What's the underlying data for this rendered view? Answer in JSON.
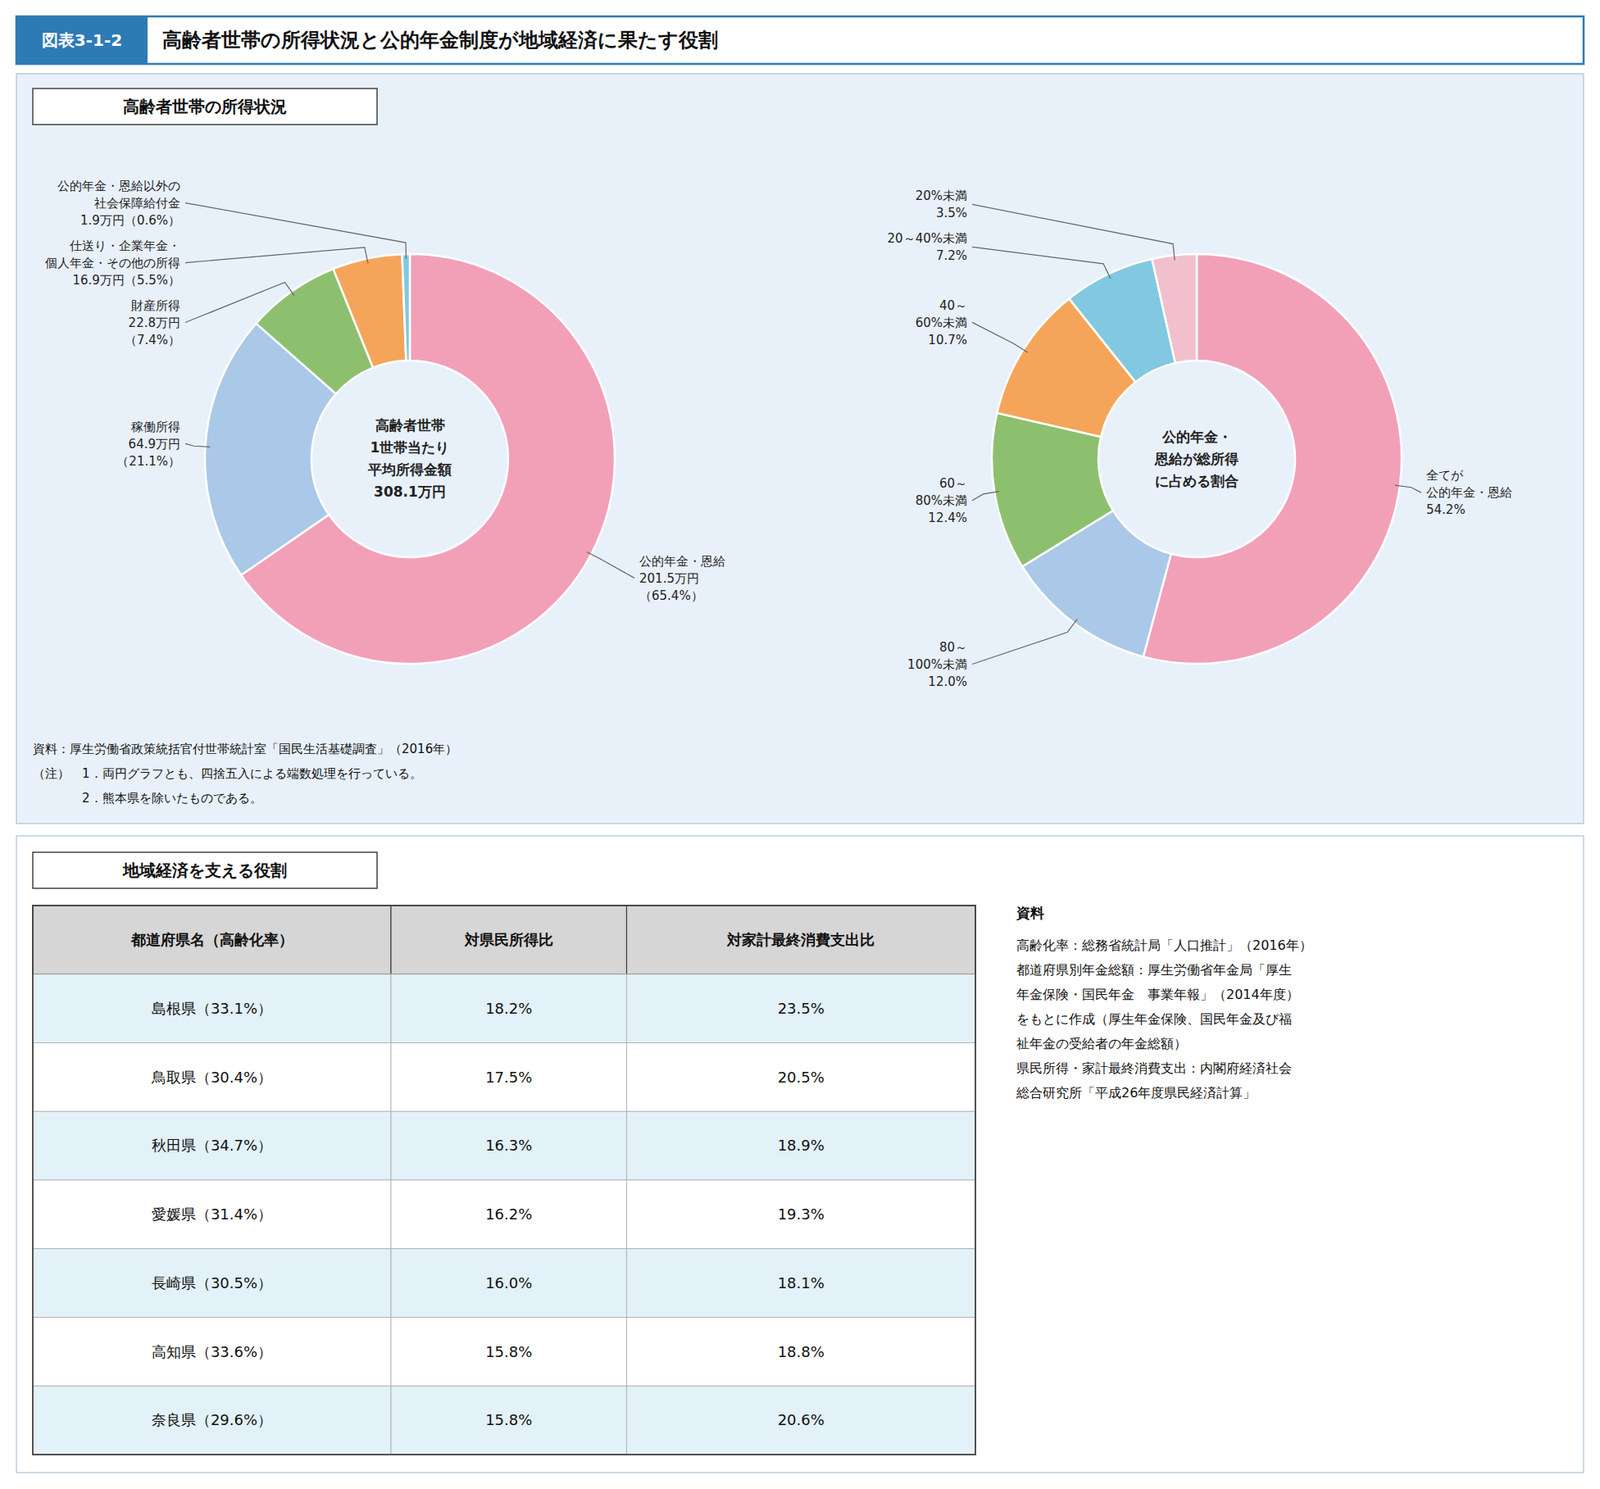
{
  "title": "高齢者世帯の所得状況と公的年金制度が地域経済に果たす役割",
  "subtitle": "図表3-1-2",
  "annotations": [
    "資料：厚生労働省政策統括官付世帯統計室「国民生活基礎調査」（2016年）",
    "（注）　1．両円グラフとも、四捨五入による端数処理を行っている。",
    "　　　　2．熊本県を除いたものである。"
  ],
  "chart_data": [
    {
      "type": "pie",
      "title": "高齢者世帯の所得状況",
      "categories": [
        "公的年金・恩給\n201.5万円\n（65.4%）",
        "稼働所得\n64.9万円\n（21.1%）",
        "財産所得\n22.8万円\n（7.4%）",
        "仕送り・企業年金・\n個人年金・その他の所得\n16.9万円（5.5%）",
        "公的年金・恩給以外の\n社会保障給付金\n1.9万円（0.6%）"
      ],
      "values": [
        65.4,
        21.1,
        7.4,
        5.5,
        0.6
      ],
      "colors": [
        "#f2a0b8",
        "#aac8e8",
        "#8dc06e",
        "#f5a55a",
        "#82c8e0"
      ],
      "annotations": [
        "高齢者世帯\n1世帯当たり\n平均所得金額\n308.1万円"
      ]
    },
    {
      "type": "pie",
      "categories": [
        "全てが\n公的年金・恩給\n54.2%",
        "80～\n100%未満\n12.0%",
        "60～\n80%未満\n12.4%",
        "40～\n60%未満\n10.7%",
        "20～40%未満\n7.2%",
        "20%未満\n3.5%"
      ],
      "values": [
        54.2,
        12.0,
        12.4,
        10.7,
        7.2,
        3.5
      ],
      "colors": [
        "#f2a0b8",
        "#aac8e8",
        "#8dc06e",
        "#f5a55a",
        "#82c8e0",
        "#f2c0cc"
      ],
      "annotations": [
        "公的年金・\n恩給が総所得\nに占める割合"
      ]
    },
    {
      "type": "table",
      "title": "地域経済を支える役割",
      "xlabel": "都道府県名（高齢化率）",
      "categories": [
        "島根県（33.1%）",
        "鳥取県（30.4%）",
        "秋田県（34.7%）",
        "愛媛県（31.4%）",
        "長崎県（30.5%）",
        "高知県（33.6%）",
        "奈良県（29.6%）"
      ],
      "series": [
        {
          "name": "対県民所得比",
          "values": [
            18.2,
            17.5,
            16.3,
            16.2,
            16.0,
            15.8,
            15.8
          ],
          "value_labels": [
            "18.2%",
            "17.5%",
            "16.3%",
            "16.2%",
            "16.0%",
            "15.8%",
            "15.8%"
          ]
        },
        {
          "name": "対家計最終消費支出比",
          "values": [
            23.5,
            20.5,
            18.9,
            19.3,
            18.1,
            18.8,
            20.6
          ],
          "value_labels": [
            "23.5%",
            "20.5%",
            "18.9%",
            "19.3%",
            "18.1%",
            "18.8%",
            "20.6%"
          ]
        }
      ],
      "annotations": [
        "資料",
        "高齢化率：総務省統計局「人口推計」（2016年）\n都道府県別年金総額：厚生労働省年金局「厚生\n年金保険・国民年金　事業年報」（2014年度）\nをもとに作成（厚生年金保険、国民年金及び福\n祉年金の受給者の年金総額）\n県民所得・家計最終消費支出：内閣府経済社会\n総合研究所「平成26年度県民経済計算」"
      ]
    }
  ]
}
